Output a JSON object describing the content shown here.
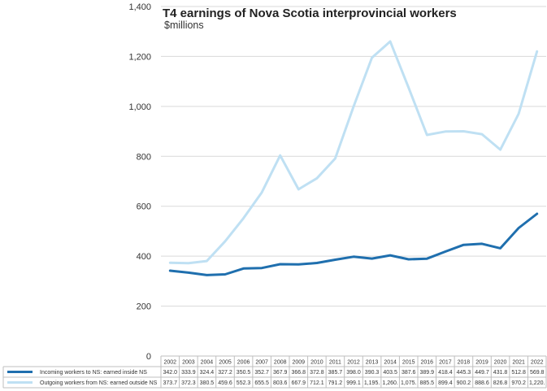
{
  "chart_data": {
    "type": "line",
    "title": "T4 earnings of Nova Scotia interprovincial workers",
    "subtitle": "$millions",
    "xlabel": "",
    "ylabel": "",
    "ylim": [
      0,
      1400
    ],
    "yticks": [
      "0",
      "200",
      "400",
      "600",
      "800",
      "1,000",
      "1,200",
      "1,400"
    ],
    "grid": true,
    "legend": "bottom data table",
    "categories": [
      "2002",
      "2003",
      "2004",
      "2005",
      "2006",
      "2007",
      "2008",
      "2009",
      "2010",
      "2011",
      "2012",
      "2013",
      "2014",
      "2015",
      "2016",
      "2017",
      "2018",
      "2019",
      "2020",
      "2021",
      "2022"
    ],
    "series": [
      {
        "name": "Incoming workers to NS: earned inside NS",
        "color": "#1f6fae",
        "values": [
          342.0,
          333.9,
          324.4,
          327.2,
          350.5,
          352.7,
          367.9,
          366.8,
          372.8,
          385.7,
          398.0,
          390.3,
          403.5,
          387.6,
          389.9,
          418.4,
          445.3,
          449.7,
          431.8,
          512.8,
          569.8
        ],
        "labels": [
          "342.0",
          "333.9",
          "324.4",
          "327.2",
          "350.5",
          "352.7",
          "367.9",
          "366.8",
          "372.8",
          "385.7",
          "398.0",
          "390.3",
          "403.5",
          "387.6",
          "389.9",
          "418.4",
          "445.3",
          "449.7",
          "431.8",
          "512.8",
          "569.8"
        ]
      },
      {
        "name": "Outgoing workers from NS: earned outside NS",
        "color": "#bfe0f3",
        "values": [
          373.7,
          372.3,
          380.5,
          459.6,
          552.3,
          655.5,
          803.6,
          667.9,
          712.1,
          791.2,
          999.1,
          1195.0,
          1260.0,
          1075.0,
          885.5,
          899.4,
          900.2,
          888.6,
          826.8,
          970.2,
          1220.0
        ],
        "labels": [
          "373.7",
          "372.3",
          "380.5",
          "459.6",
          "552.3",
          "655.5",
          "803.6",
          "667.9",
          "712.1",
          "791.2",
          "999.1",
          "1,195.",
          "1,260.",
          "1,075.",
          "885.5",
          "899.4",
          "900.2",
          "888.6",
          "826.8",
          "970.2",
          "1,220."
        ]
      }
    ]
  }
}
